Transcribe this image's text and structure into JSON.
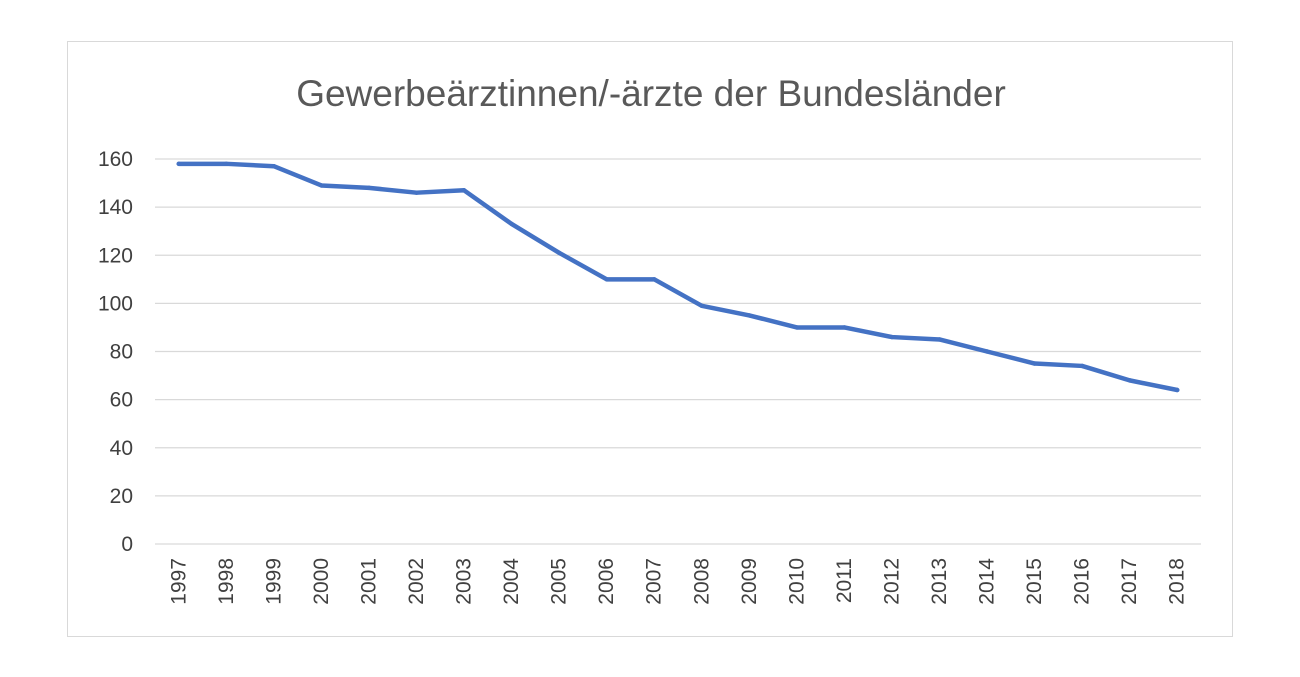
{
  "chart_data": {
    "type": "line",
    "title": "Gewerbeärztinnen/-ärzte der Bundesländer",
    "xlabel": "",
    "ylabel": "",
    "categories": [
      "1997",
      "1998",
      "1999",
      "2000",
      "2001",
      "2002",
      "2003",
      "2004",
      "2005",
      "2006",
      "2007",
      "2008",
      "2009",
      "2010",
      "2011",
      "2012",
      "2013",
      "2014",
      "2015",
      "2016",
      "2017",
      "2018"
    ],
    "series": [
      {
        "values": [
          158,
          158,
          157,
          149,
          148,
          146,
          147,
          133,
          121,
          110,
          110,
          99,
          95,
          90,
          90,
          86,
          85,
          80,
          75,
          74,
          68,
          64
        ],
        "color": "#4472c4"
      }
    ],
    "ylim": [
      0,
      160
    ],
    "yticks": [
      0,
      20,
      40,
      60,
      80,
      100,
      120,
      140,
      160
    ],
    "grid": true,
    "legend": "none",
    "x_tick_rotation": "vertical"
  }
}
